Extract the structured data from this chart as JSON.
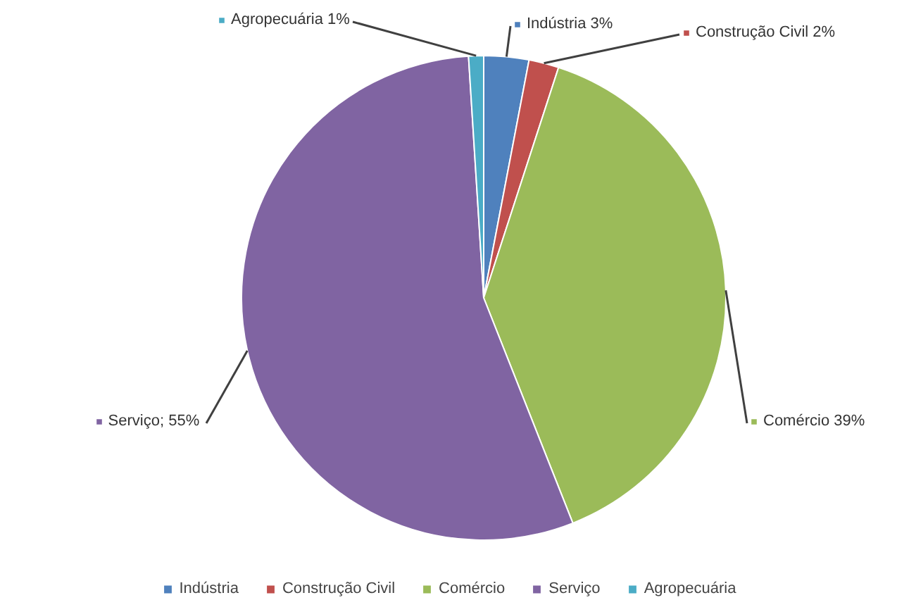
{
  "chart_data": {
    "type": "pie",
    "categories": [
      "Indústria",
      "Construção Civil",
      "Comércio",
      "Serviço",
      "Agropecuária"
    ],
    "values": [
      3,
      2,
      39,
      55,
      1
    ],
    "colors": [
      "#4f81bd",
      "#c0504d",
      "#9bbb59",
      "#8064a2",
      "#4bacc6"
    ],
    "value_labels": [
      "Indústria 3%",
      "Construção Civil 2%",
      "Comércio 39%",
      "Serviço; 55%",
      "Agropecuária 1%"
    ],
    "legend": "bottom"
  }
}
